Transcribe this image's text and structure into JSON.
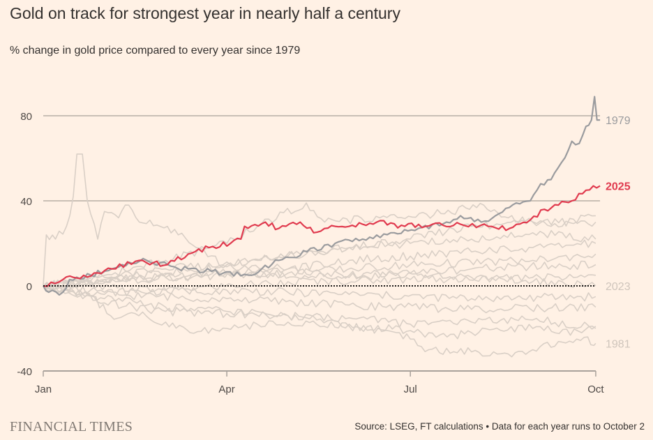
{
  "title": "Gold on track for strongest year in nearly half a century",
  "subtitle": "% change in gold price compared to every year since 1979",
  "footer": {
    "logo": "FINANCIAL TIMES",
    "source": "Source: LSEG, FT calculations • Data for each year runs to October 2"
  },
  "colors": {
    "background": "#fff1e5",
    "highlight": "#e03a4e",
    "y1979": "#9a9b9e",
    "other_years": "#d9cfc6",
    "grid": "#c9bfb5"
  },
  "chart_data": {
    "type": "line",
    "title": "Gold on track for strongest year in nearly half a century",
    "ylabel": "% change in gold price",
    "xlabel": "",
    "x_units": "months since Jan 1",
    "xlim": [
      0,
      9.1
    ],
    "ylim": [
      -40,
      90
    ],
    "y_ticks": [
      80,
      40,
      0,
      -40
    ],
    "x_ticks": [
      {
        "value": 0,
        "label": "Jan"
      },
      {
        "value": 3,
        "label": "Apr"
      },
      {
        "value": 6,
        "label": "Jul"
      },
      {
        "value": 9.03,
        "label": "Oct"
      }
    ],
    "grid": "horizontal",
    "series": [
      {
        "name": "1980-bg",
        "label": "",
        "style": "bg",
        "points": [
          [
            0,
            0
          ],
          [
            0.05,
            24
          ],
          [
            0.2,
            22
          ],
          [
            0.38,
            28
          ],
          [
            0.49,
            42
          ],
          [
            0.55,
            62
          ],
          [
            0.64,
            62
          ],
          [
            0.72,
            40
          ],
          [
            0.89,
            22
          ],
          [
            1.0,
            35
          ],
          [
            1.23,
            32
          ],
          [
            1.34,
            38
          ],
          [
            1.57,
            30
          ],
          [
            2.03,
            28
          ],
          [
            2.5,
            18
          ],
          [
            2.94,
            10
          ],
          [
            3.5,
            12
          ],
          [
            4.2,
            15
          ],
          [
            5,
            18
          ],
          [
            6,
            20
          ],
          [
            7,
            22
          ],
          [
            8,
            25
          ],
          [
            9.03,
            22
          ]
        ]
      },
      {
        "name": "bg-a",
        "label": "",
        "style": "bg",
        "points": [
          [
            0,
            0
          ],
          [
            1,
            5
          ],
          [
            2,
            12
          ],
          [
            3,
            20
          ],
          [
            3.5,
            28
          ],
          [
            4.3,
            39
          ],
          [
            4.6,
            30
          ],
          [
            5.5,
            32
          ],
          [
            6.5,
            34
          ],
          [
            7.2,
            38
          ],
          [
            7.6,
            32
          ],
          [
            8.3,
            28
          ],
          [
            9.03,
            33
          ]
        ]
      },
      {
        "name": "bg-b",
        "label": "",
        "style": "bg",
        "points": [
          [
            0,
            0
          ],
          [
            1,
            4
          ],
          [
            2,
            8
          ],
          [
            3,
            10
          ],
          [
            4,
            14
          ],
          [
            5,
            18
          ],
          [
            6,
            22
          ],
          [
            7,
            28
          ],
          [
            8,
            30
          ],
          [
            9.03,
            30
          ]
        ]
      },
      {
        "name": "bg-c",
        "label": "",
        "style": "bg",
        "points": [
          [
            0,
            0
          ],
          [
            1,
            3
          ],
          [
            2,
            6
          ],
          [
            3,
            9
          ],
          [
            4,
            8
          ],
          [
            5,
            12
          ],
          [
            6,
            14
          ],
          [
            7,
            16
          ],
          [
            8,
            18
          ],
          [
            9.03,
            20
          ]
        ]
      },
      {
        "name": "bg-d",
        "label": "",
        "style": "bg",
        "points": [
          [
            0,
            0
          ],
          [
            2,
            4
          ],
          [
            4,
            6
          ],
          [
            6,
            10
          ],
          [
            8,
            12
          ],
          [
            9.03,
            15
          ]
        ]
      },
      {
        "name": "bg-e",
        "label": "",
        "style": "bg",
        "points": [
          [
            0,
            0
          ],
          [
            1,
            2
          ],
          [
            3,
            6
          ],
          [
            5,
            4
          ],
          [
            7,
            8
          ],
          [
            9.03,
            10
          ]
        ]
      },
      {
        "name": "bg-f",
        "label": "",
        "style": "bg",
        "points": [
          [
            0,
            0
          ],
          [
            2,
            -2
          ],
          [
            4,
            2
          ],
          [
            6,
            3
          ],
          [
            8,
            4
          ],
          [
            9.03,
            5
          ]
        ]
      },
      {
        "name": "bg-g",
        "label": "",
        "style": "bg",
        "points": [
          [
            0,
            0
          ],
          [
            1,
            -3
          ],
          [
            3,
            -2
          ],
          [
            5,
            -4
          ],
          [
            7,
            -6
          ],
          [
            9.03,
            -5
          ]
        ]
      },
      {
        "name": "bg-h",
        "label": "",
        "style": "bg",
        "points": [
          [
            0,
            0
          ],
          [
            1,
            -4
          ],
          [
            3,
            -6
          ],
          [
            5,
            -9
          ],
          [
            7,
            -11
          ],
          [
            9.03,
            -10
          ]
        ]
      },
      {
        "name": "bg-i",
        "label": "",
        "style": "bg",
        "points": [
          [
            0,
            0
          ],
          [
            1,
            -8
          ],
          [
            2,
            -12
          ],
          [
            3,
            -13
          ],
          [
            4,
            -14
          ],
          [
            5,
            -15
          ],
          [
            6,
            -18
          ],
          [
            7,
            -17
          ],
          [
            8,
            -16
          ],
          [
            9.03,
            -19
          ]
        ]
      },
      {
        "name": "bg-j",
        "label": "",
        "style": "bg",
        "points": [
          [
            0,
            0
          ],
          [
            0.8,
            -5
          ],
          [
            1.1,
            -14
          ],
          [
            1.5,
            -13
          ],
          [
            2,
            -17
          ],
          [
            2.4,
            -22
          ],
          [
            3,
            -20
          ],
          [
            3.5,
            -18
          ],
          [
            4,
            -17
          ],
          [
            5,
            -19
          ],
          [
            6,
            -21
          ],
          [
            6.6,
            -24
          ],
          [
            7,
            -22
          ],
          [
            8,
            -20
          ],
          [
            8.8,
            -22
          ],
          [
            9.03,
            -20
          ]
        ]
      },
      {
        "name": "1981",
        "label": "1981",
        "style": "bg",
        "points": [
          [
            0,
            0
          ],
          [
            0.5,
            -3
          ],
          [
            1,
            -6
          ],
          [
            2,
            -10
          ],
          [
            3,
            -12
          ],
          [
            4,
            -14
          ],
          [
            5,
            -18
          ],
          [
            6,
            -25
          ],
          [
            6.3,
            -30
          ],
          [
            7,
            -31
          ],
          [
            7.6,
            -32
          ],
          [
            8,
            -30
          ],
          [
            8.6,
            -26
          ],
          [
            8.9,
            -24
          ],
          [
            9.0,
            -28
          ],
          [
            9.03,
            -27
          ]
        ]
      },
      {
        "name": "2023",
        "label": "2023",
        "style": "bg",
        "points": [
          [
            0,
            0
          ],
          [
            1,
            3
          ],
          [
            2,
            4
          ],
          [
            3,
            6
          ],
          [
            4,
            8
          ],
          [
            5,
            5
          ],
          [
            6,
            6
          ],
          [
            7,
            4
          ],
          [
            8,
            2
          ],
          [
            9.03,
            0
          ]
        ]
      },
      {
        "name": "1979",
        "label": "1979",
        "style": "y1979",
        "points": [
          [
            0,
            0
          ],
          [
            0.09,
            -3
          ],
          [
            0.32,
            -3
          ],
          [
            0.43,
            3
          ],
          [
            0.78,
            5
          ],
          [
            1.12,
            8
          ],
          [
            1.29,
            10
          ],
          [
            1.69,
            12
          ],
          [
            2.14,
            9
          ],
          [
            2.37,
            8
          ],
          [
            2.94,
            6
          ],
          [
            3.4,
            5
          ],
          [
            3.57,
            8
          ],
          [
            3.85,
            12
          ],
          [
            4.31,
            16
          ],
          [
            4.77,
            20
          ],
          [
            5.22,
            22
          ],
          [
            5.68,
            25
          ],
          [
            6.13,
            27
          ],
          [
            6.59,
            30
          ],
          [
            6.82,
            33
          ],
          [
            7.16,
            30
          ],
          [
            7.39,
            33
          ],
          [
            7.73,
            39
          ],
          [
            7.96,
            40
          ],
          [
            8.13,
            48
          ],
          [
            8.3,
            50
          ],
          [
            8.47,
            58
          ],
          [
            8.64,
            68
          ],
          [
            8.76,
            67
          ],
          [
            8.87,
            75
          ],
          [
            8.96,
            78
          ],
          [
            9.01,
            89
          ],
          [
            9.05,
            78
          ],
          [
            9.1,
            78
          ]
        ]
      },
      {
        "name": "2025",
        "label": "2025",
        "style": "highlight",
        "points": [
          [
            0,
            0
          ],
          [
            0.32,
            3
          ],
          [
            0.66,
            5
          ],
          [
            1.12,
            8
          ],
          [
            1.57,
            12
          ],
          [
            2.03,
            10
          ],
          [
            2.37,
            15
          ],
          [
            2.71,
            18
          ],
          [
            3.06,
            20
          ],
          [
            3.23,
            22
          ],
          [
            3.29,
            28
          ],
          [
            3.63,
            30
          ],
          [
            3.85,
            27
          ],
          [
            4.2,
            30
          ],
          [
            4.42,
            25
          ],
          [
            4.77,
            28
          ],
          [
            5.22,
            29
          ],
          [
            5.45,
            30
          ],
          [
            5.91,
            28
          ],
          [
            6.36,
            29
          ],
          [
            6.82,
            29
          ],
          [
            7.27,
            28
          ],
          [
            7.62,
            27
          ],
          [
            7.96,
            31
          ],
          [
            8.19,
            36
          ],
          [
            8.42,
            38
          ],
          [
            8.64,
            40
          ],
          [
            8.87,
            45
          ],
          [
            8.99,
            47
          ],
          [
            9.1,
            47
          ]
        ]
      }
    ]
  }
}
